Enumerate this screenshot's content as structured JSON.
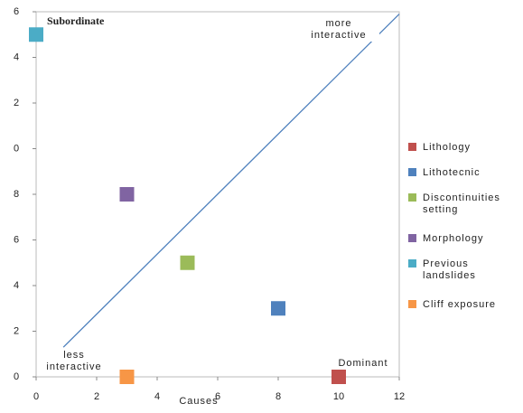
{
  "chart_data": {
    "type": "scatter",
    "xlabel": "Causes",
    "xlim": [
      0,
      12
    ],
    "xticks": [
      0,
      2,
      4,
      6,
      8,
      10,
      12
    ],
    "ylim": [
      0,
      16
    ],
    "yticks": [
      0,
      2,
      4,
      6,
      8,
      {
        "value": 10,
        "label": "0"
      },
      {
        "value": 12,
        "label": "2"
      },
      {
        "value": 14,
        "label": "4"
      },
      {
        "value": 16,
        "label": "6"
      }
    ],
    "series": [
      {
        "name": "Lithology",
        "color": "#c0504d",
        "x": [
          10
        ],
        "values": [
          0
        ]
      },
      {
        "name": "Lithotecnic",
        "color": "#4f81bd",
        "x": [
          8
        ],
        "values": [
          3
        ]
      },
      {
        "name": "Discontinuities setting",
        "color": "#9bbb59",
        "x": [
          5
        ],
        "values": [
          5
        ]
      },
      {
        "name": "Morphology",
        "color": "#8064a2",
        "x": [
          3
        ],
        "values": [
          8
        ]
      },
      {
        "name": "Previous landslides",
        "color": "#4bacc6",
        "x": [
          0
        ],
        "values": [
          15
        ]
      },
      {
        "name": "Cliff exposure",
        "color": "#f79646",
        "x": [
          3
        ],
        "values": [
          0
        ]
      }
    ],
    "trend_line": {
      "color": "#4f81bd",
      "x": [
        0.9,
        12
      ],
      "values": [
        1.3,
        15.9
      ]
    },
    "annotations": [
      "Subordinate",
      "more interactive",
      "less interactive",
      "Dominant"
    ]
  }
}
